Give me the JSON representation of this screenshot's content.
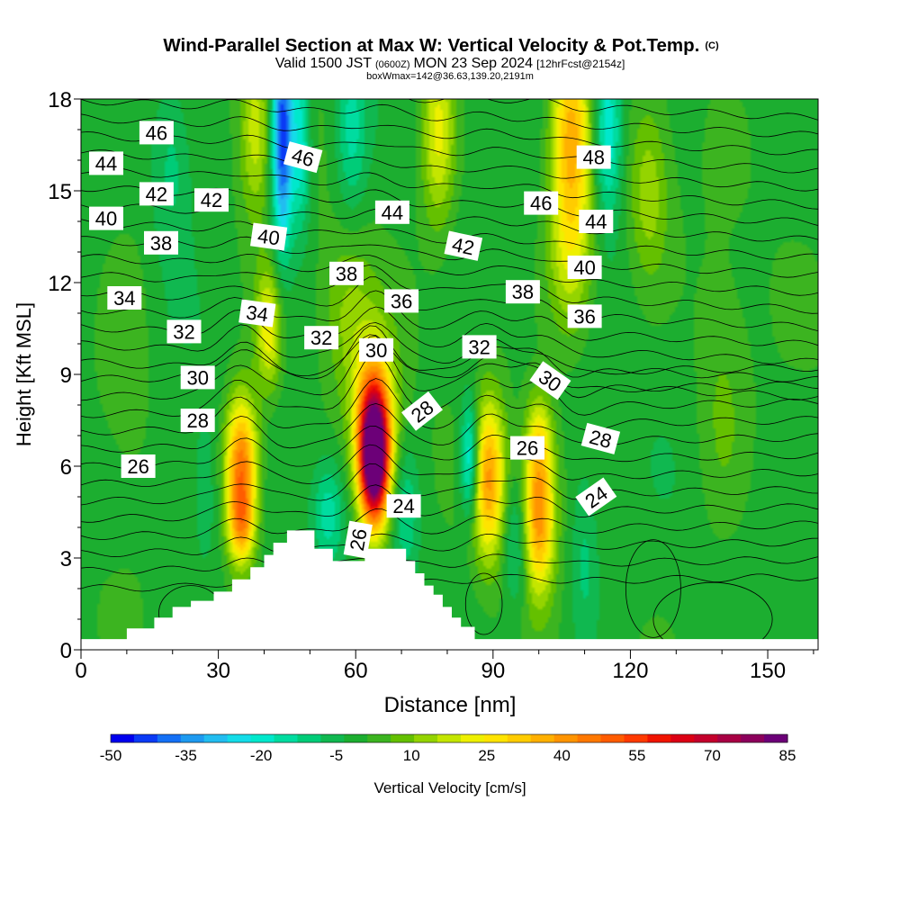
{
  "title": "Wind-Parallel Section at Max W: Vertical Velocity & Pot.Temp.",
  "title_mark": "(C)",
  "subtitle_prefix": "Valid 1500 JST",
  "subtitle_utc": "(0600Z)",
  "subtitle_date": "MON 23 Sep 2024",
  "subtitle_fcst": "[12hrFcst@2154z]",
  "boxline": "boxWmax=142@36.63,139.20,2191m",
  "chart_data": {
    "type": "heatmap",
    "xlabel": "Distance [nm]",
    "ylabel": "Height [Kft MSL]",
    "xlim": [
      0,
      161
    ],
    "ylim": [
      0,
      18
    ],
    "x_ticks": [
      "0",
      "30",
      "60",
      "90",
      "120",
      "150"
    ],
    "y_ticks": [
      "0",
      "3",
      "6",
      "9",
      "12",
      "15",
      "18"
    ],
    "colorbar": {
      "label": "Vertical Velocity [cm/s]",
      "min": -50,
      "max": 85,
      "step": 5,
      "tick_labels": [
        "-50",
        "-35",
        "-20",
        "-5",
        "10",
        "25",
        "40",
        "55",
        "70",
        "85"
      ],
      "colors": [
        "#0000ee",
        "#0a3af5",
        "#1470f5",
        "#1e9af0",
        "#22bdf0",
        "#14dce8",
        "#00e8cc",
        "#00dca0",
        "#00cc78",
        "#10b850",
        "#1cae30",
        "#3cb420",
        "#64c000",
        "#94d400",
        "#c4e600",
        "#eef000",
        "#ffe400",
        "#ffcc00",
        "#ffb000",
        "#ff9400",
        "#ff7800",
        "#ff5c00",
        "#ff3a00",
        "#f01400",
        "#dc0014",
        "#c4002c",
        "#a80044",
        "#8c005c",
        "#6c0078"
      ]
    },
    "terrain": [
      [
        0,
        0.35
      ],
      [
        10,
        0.35
      ],
      [
        10,
        0.7
      ],
      [
        16,
        0.7
      ],
      [
        16,
        1.05
      ],
      [
        20,
        1.05
      ],
      [
        20,
        1.4
      ],
      [
        24,
        1.4
      ],
      [
        24,
        1.6
      ],
      [
        29,
        1.6
      ],
      [
        29,
        1.9
      ],
      [
        33,
        1.9
      ],
      [
        33,
        2.3
      ],
      [
        37,
        2.3
      ],
      [
        37,
        2.7
      ],
      [
        40,
        2.7
      ],
      [
        40,
        3.1
      ],
      [
        42,
        3.1
      ],
      [
        42,
        3.5
      ],
      [
        45,
        3.5
      ],
      [
        45,
        3.9
      ],
      [
        48,
        3.9
      ],
      [
        48,
        3.9
      ],
      [
        51,
        3.9
      ],
      [
        51,
        3.3
      ],
      [
        55,
        3.3
      ],
      [
        55,
        2.9
      ],
      [
        62,
        2.9
      ],
      [
        62,
        3.3
      ],
      [
        71,
        3.3
      ],
      [
        71,
        2.9
      ],
      [
        73,
        2.9
      ],
      [
        73,
        2.5
      ],
      [
        75,
        2.5
      ],
      [
        75,
        2.1
      ],
      [
        77,
        2.1
      ],
      [
        77,
        1.8
      ],
      [
        79,
        1.8
      ],
      [
        79,
        1.4
      ],
      [
        81,
        1.4
      ],
      [
        81,
        1.05
      ],
      [
        83,
        1.05
      ],
      [
        83,
        0.75
      ],
      [
        86,
        0.75
      ],
      [
        86,
        0.35
      ],
      [
        161,
        0.35
      ]
    ],
    "w_cells": [
      {
        "x": 35,
        "y": 6.0,
        "sx": 2.5,
        "sy": 1.6,
        "w": 52
      },
      {
        "x": 35,
        "y": 4.0,
        "sx": 2.0,
        "sy": 0.9,
        "w": 28
      },
      {
        "x": 64,
        "y": 6.2,
        "sx": 2.2,
        "sy": 1.5,
        "w": 98
      },
      {
        "x": 64,
        "y": 7.6,
        "sx": 3.2,
        "sy": 1.8,
        "w": 40
      },
      {
        "x": 89,
        "y": 5.6,
        "sx": 2.6,
        "sy": 1.8,
        "w": 42
      },
      {
        "x": 100,
        "y": 4.5,
        "sx": 2.4,
        "sy": 1.8,
        "w": 46
      },
      {
        "x": 100,
        "y": 7.0,
        "sx": 2.0,
        "sy": 1.0,
        "w": 16
      },
      {
        "x": 107,
        "y": 17.0,
        "sx": 3.0,
        "sy": 2.2,
        "w": 36
      },
      {
        "x": 107,
        "y": 13.0,
        "sx": 3.6,
        "sy": 2.0,
        "w": 22
      },
      {
        "x": 44,
        "y": 16.8,
        "sx": 1.6,
        "sy": 2.6,
        "w": -48
      },
      {
        "x": 48,
        "y": 16.5,
        "sx": 1.5,
        "sy": 2.0,
        "w": -22
      },
      {
        "x": 85,
        "y": 6.2,
        "sx": 1.5,
        "sy": 1.4,
        "w": -32
      },
      {
        "x": 115,
        "y": 17.0,
        "sx": 2.2,
        "sy": 2.0,
        "w": -25
      },
      {
        "x": 59,
        "y": 17.0,
        "sx": 2.4,
        "sy": 2.0,
        "w": -16
      },
      {
        "x": 38,
        "y": 17.0,
        "sx": 2.4,
        "sy": 2.0,
        "w": 20
      },
      {
        "x": 78,
        "y": 17.0,
        "sx": 2.6,
        "sy": 2.2,
        "w": 24
      },
      {
        "x": 20,
        "y": 16.0,
        "sx": 3.0,
        "sy": 2.0,
        "w": -10
      },
      {
        "x": 124,
        "y": 15.0,
        "sx": 3.0,
        "sy": 2.0,
        "w": 15
      },
      {
        "x": 71,
        "y": 4.5,
        "sx": 2.0,
        "sy": 1.5,
        "w": -12
      },
      {
        "x": 95,
        "y": 3.5,
        "sx": 2.0,
        "sy": 1.5,
        "w": -14
      },
      {
        "x": 110,
        "y": 3.0,
        "sx": 2.2,
        "sy": 2.2,
        "w": -10
      },
      {
        "x": 54,
        "y": 4.5,
        "sx": 2.4,
        "sy": 1.2,
        "w": -16
      },
      {
        "x": 27,
        "y": 5.0,
        "sx": 2.4,
        "sy": 2.0,
        "w": -6
      },
      {
        "x": 140,
        "y": 8.0,
        "sx": 4.0,
        "sy": 3.0,
        "w": 8
      },
      {
        "x": 10,
        "y": 10.0,
        "sx": 4.0,
        "sy": 3.0,
        "w": 6
      },
      {
        "x": 58,
        "y": 11.0,
        "sx": 4.0,
        "sy": 2.0,
        "w": 12
      },
      {
        "x": 41,
        "y": 10.5,
        "sx": 2.0,
        "sy": 1.4,
        "w": 26
      }
    ],
    "theta_labels": [
      {
        "text": "46",
        "x": 16.5,
        "y": 16.9,
        "angle": 0
      },
      {
        "text": "44",
        "x": 5.5,
        "y": 15.9,
        "angle": 0
      },
      {
        "text": "46",
        "x": 48.5,
        "y": 16.1,
        "angle": 15
      },
      {
        "text": "48",
        "x": 112,
        "y": 16.1,
        "angle": 0
      },
      {
        "text": "42",
        "x": 16.5,
        "y": 14.9,
        "angle": 0
      },
      {
        "text": "42",
        "x": 28.5,
        "y": 14.7,
        "angle": 0
      },
      {
        "text": "44",
        "x": 68,
        "y": 14.3,
        "angle": 0
      },
      {
        "text": "46",
        "x": 100.5,
        "y": 14.6,
        "angle": 0
      },
      {
        "text": "40",
        "x": 5.5,
        "y": 14.1,
        "angle": 0
      },
      {
        "text": "44",
        "x": 112.5,
        "y": 14.0,
        "angle": 0
      },
      {
        "text": "38",
        "x": 17.5,
        "y": 13.3,
        "angle": 0
      },
      {
        "text": "40",
        "x": 41,
        "y": 13.5,
        "angle": 8
      },
      {
        "text": "42",
        "x": 83.5,
        "y": 13.2,
        "angle": 12
      },
      {
        "text": "40",
        "x": 110,
        "y": 12.5,
        "angle": 0
      },
      {
        "text": "38",
        "x": 58,
        "y": 12.3,
        "angle": 0
      },
      {
        "text": "38",
        "x": 96.5,
        "y": 11.7,
        "angle": 0
      },
      {
        "text": "34",
        "x": 9.5,
        "y": 11.5,
        "angle": 0
      },
      {
        "text": "36",
        "x": 70,
        "y": 11.4,
        "angle": 0
      },
      {
        "text": "34",
        "x": 38.5,
        "y": 11.0,
        "angle": 8
      },
      {
        "text": "36",
        "x": 110,
        "y": 10.9,
        "angle": 0
      },
      {
        "text": "32",
        "x": 22.5,
        "y": 10.4,
        "angle": 0
      },
      {
        "text": "32",
        "x": 52.5,
        "y": 10.2,
        "angle": 0
      },
      {
        "text": "30",
        "x": 64.5,
        "y": 9.8,
        "angle": 0
      },
      {
        "text": "32",
        "x": 87,
        "y": 9.9,
        "angle": 0
      },
      {
        "text": "30",
        "x": 25.5,
        "y": 8.9,
        "angle": 0
      },
      {
        "text": "30",
        "x": 102.5,
        "y": 8.8,
        "angle": 35
      },
      {
        "text": "28",
        "x": 74.5,
        "y": 7.8,
        "angle": -38
      },
      {
        "text": "28",
        "x": 25.5,
        "y": 7.5,
        "angle": 0
      },
      {
        "text": "28",
        "x": 113.5,
        "y": 6.9,
        "angle": 15
      },
      {
        "text": "26",
        "x": 97.5,
        "y": 6.6,
        "angle": 0
      },
      {
        "text": "26",
        "x": 12.5,
        "y": 6.0,
        "angle": 0
      },
      {
        "text": "24",
        "x": 70.5,
        "y": 4.7,
        "angle": 0
      },
      {
        "text": "24",
        "x": 112.5,
        "y": 5.0,
        "angle": -35
      },
      {
        "text": "26",
        "x": 60.5,
        "y": 3.6,
        "angle": -80
      }
    ]
  }
}
